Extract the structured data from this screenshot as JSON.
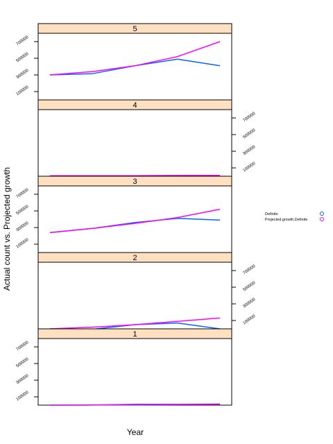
{
  "chart_data": {
    "type": "line",
    "layout": "lattice-panels",
    "xlabel": "Year",
    "ylabel": "Actual count vs. Projected growth",
    "ylim": [
      0,
      800000
    ],
    "y_ticks": [
      100000,
      300000,
      500000,
      700000
    ],
    "y_tick_labels": [
      "100000",
      "300000",
      "500000",
      "700000"
    ],
    "x_points": 5,
    "legend": {
      "placement": "right",
      "entries": [
        {
          "label": "Definite",
          "color": "#0066FF"
        },
        {
          "label": "Projected.growth.Definite",
          "color": "#FF00FF"
        }
      ]
    },
    "panels": [
      {
        "label": "5",
        "series": [
          {
            "name": "Definite",
            "color": "#0066FF",
            "values": [
              300000,
              315000,
              410000,
              490000,
              410000
            ]
          },
          {
            "name": "Projected.growth.Definite",
            "color": "#FF00FF",
            "values": [
              300000,
              340000,
              410000,
              520000,
              700000
            ]
          }
        ]
      },
      {
        "label": "4",
        "series": [
          {
            "name": "Definite",
            "color": "#0066FF",
            "values": [
              5000,
              6000,
              7000,
              8000,
              8000
            ]
          },
          {
            "name": "Projected.growth.Definite",
            "color": "#FF00FF",
            "values": [
              5000,
              6000,
              7000,
              8000,
              9000
            ]
          }
        ]
      },
      {
        "label": "3",
        "series": [
          {
            "name": "Definite",
            "color": "#0066FF",
            "values": [
              240000,
              290000,
              360000,
              410000,
              390000
            ]
          },
          {
            "name": "Projected.growth.Definite",
            "color": "#FF00FF",
            "values": [
              240000,
              290000,
              350000,
              420000,
              520000
            ]
          }
        ]
      },
      {
        "label": "2",
        "series": [
          {
            "name": "Definite",
            "color": "#0066FF",
            "values": [
              0,
              -5000,
              50000,
              70000,
              0
            ]
          },
          {
            "name": "Projected.growth.Definite",
            "color": "#FF00FF",
            "values": [
              0,
              20000,
              50000,
              90000,
              130000
            ]
          }
        ]
      },
      {
        "label": "1",
        "series": [
          {
            "name": "Definite",
            "color": "#0066FF",
            "values": [
              0,
              500,
              11000,
              10000,
              13000
            ]
          },
          {
            "name": "Projected.growth.Definite",
            "color": "#FF00FF",
            "values": [
              0,
              2000,
              4000,
              7000,
              10000
            ]
          }
        ]
      }
    ]
  },
  "colors": {
    "strip_fill": "#FFE0C0",
    "frame": "#000000"
  }
}
